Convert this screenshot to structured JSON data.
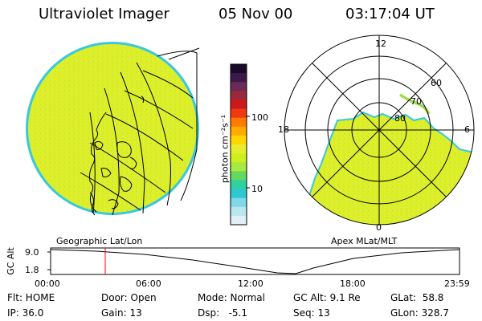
{
  "header": {
    "title": "Ultraviolet Imager",
    "date": "05 Nov 00",
    "time": "03:17:04 UT"
  },
  "colorbar": {
    "unit_label": "photon cm⁻²s⁻¹",
    "ticks": [
      "100",
      "10"
    ],
    "colors": [
      "#1a0a2a",
      "#3b1a4a",
      "#6a2a5a",
      "#9a2a3a",
      "#cc1a1a",
      "#ee3a10",
      "#ff7a00",
      "#ffaa00",
      "#ffd700",
      "#e8ec30",
      "#ccef20",
      "#a8e840",
      "#66d860",
      "#30d0a0",
      "#30c8d0",
      "#80d8e8",
      "#b8e8ee",
      "#e0f0f4"
    ]
  },
  "geo_panel": {
    "label": "Geographic Lat/Lon",
    "fill_color": "#dcef2a",
    "rim_color": "#36c8e0"
  },
  "polar_panel": {
    "label": "Apex MLat/MLT",
    "mlt_labels": {
      "top": "12",
      "left": "18",
      "right": "6",
      "bottom": "0"
    },
    "mlat_labels": [
      "60",
      "70",
      "80"
    ]
  },
  "timeline": {
    "axis_label": "GC Alt",
    "y_ticks": [
      "9.0",
      "1.8"
    ],
    "x_ticks": [
      "00:00",
      "06:00",
      "12:00",
      "18:00",
      "23:59"
    ],
    "marker_color": "#ff0000"
  },
  "status": {
    "flt": "Flt: HOME",
    "ip": "IP: 36.0",
    "door": "Door: Open",
    "gain": "Gain: 13",
    "mode": "Mode: Normal",
    "dsp": "Dsp:   -5.1",
    "gc_alt": "GC Alt: 9.1 Re",
    "seq": "Seq: 13",
    "glat": "GLat:  58.8",
    "glon": "GLon: 328.7"
  }
}
